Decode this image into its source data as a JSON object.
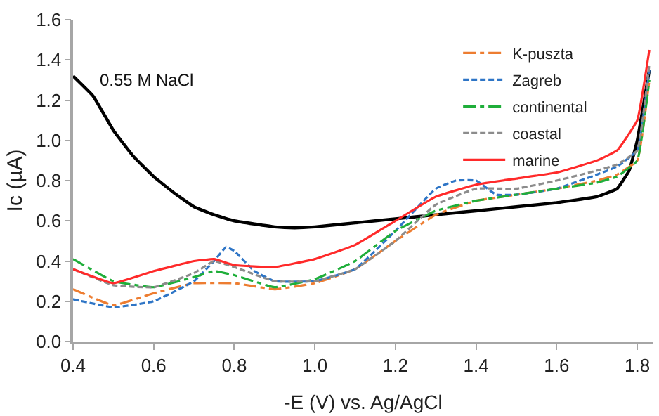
{
  "chart_data": {
    "type": "line",
    "xlabel": "-E (V) vs. Ag/AgCl",
    "ylabel": "Ic (µA)",
    "xlim": [
      0.4,
      1.84
    ],
    "xticks": [
      0.4,
      0.6,
      0.8,
      {
        "value": 1.0,
        "label": "1.0"
      },
      1.2,
      1.4,
      1.6,
      1.8
    ],
    "ylim": [
      0,
      1.6
    ],
    "yticks": [
      {
        "value": 0,
        "label": "0.0"
      },
      0.2,
      0.4,
      0.6,
      0.8,
      {
        "value": 1.0,
        "label": "1.0"
      },
      1.2,
      1.4,
      1.6
    ],
    "legend": "top right",
    "marker": "none",
    "annotations": [
      "0.55 M NaCl"
    ],
    "series": [
      {
        "color": "#000000",
        "line_style": "solid",
        "x": [
          0.4,
          0.45,
          0.5,
          0.55,
          0.6,
          0.65,
          0.7,
          0.75,
          0.8,
          0.9,
          0.95,
          1.0,
          1.1,
          1.2,
          1.3,
          1.4,
          1.5,
          1.6,
          1.7,
          1.75,
          1.78,
          1.8,
          1.83
        ],
        "values": [
          1.32,
          1.22,
          1.05,
          0.92,
          0.82,
          0.74,
          0.67,
          0.63,
          0.6,
          0.57,
          0.565,
          0.57,
          0.59,
          0.61,
          0.63,
          0.65,
          0.67,
          0.69,
          0.72,
          0.76,
          0.85,
          1.0,
          1.35
        ]
      },
      {
        "name": "K-puszta",
        "color": "#ed7d31",
        "line_style": "dashdot",
        "x": [
          0.4,
          0.5,
          0.6,
          0.7,
          0.8,
          0.9,
          1.0,
          1.1,
          1.2,
          1.3,
          1.4,
          1.5,
          1.6,
          1.7,
          1.75,
          1.8,
          1.83
        ],
        "values": [
          0.26,
          0.18,
          0.24,
          0.29,
          0.29,
          0.26,
          0.29,
          0.36,
          0.5,
          0.63,
          0.7,
          0.73,
          0.76,
          0.8,
          0.83,
          0.9,
          1.3
        ]
      },
      {
        "name": "Zagreb",
        "color": "#2e75c6",
        "line_style": "dashed",
        "x": [
          0.4,
          0.5,
          0.6,
          0.7,
          0.75,
          0.78,
          0.8,
          0.85,
          0.9,
          1.0,
          1.1,
          1.2,
          1.3,
          1.35,
          1.4,
          1.45,
          1.5,
          1.6,
          1.7,
          1.75,
          1.8,
          1.83
        ],
        "values": [
          0.21,
          0.17,
          0.2,
          0.3,
          0.4,
          0.47,
          0.45,
          0.35,
          0.3,
          0.3,
          0.36,
          0.55,
          0.76,
          0.8,
          0.8,
          0.73,
          0.73,
          0.76,
          0.83,
          0.87,
          0.95,
          1.35
        ]
      },
      {
        "name": "continental",
        "color": "#1fae3a",
        "line_style": "dashdot",
        "x": [
          0.4,
          0.5,
          0.6,
          0.7,
          0.75,
          0.8,
          0.9,
          1.0,
          1.1,
          1.2,
          1.3,
          1.4,
          1.5,
          1.6,
          1.7,
          1.75,
          1.8,
          1.83
        ],
        "values": [
          0.41,
          0.3,
          0.27,
          0.32,
          0.35,
          0.33,
          0.27,
          0.31,
          0.4,
          0.55,
          0.65,
          0.7,
          0.73,
          0.76,
          0.79,
          0.82,
          0.9,
          1.3
        ]
      },
      {
        "name": "coastal",
        "color": "#8c8c8c",
        "line_style": "dashed",
        "x": [
          0.4,
          0.5,
          0.6,
          0.7,
          0.75,
          0.8,
          0.9,
          1.0,
          1.1,
          1.2,
          1.3,
          1.4,
          1.5,
          1.6,
          1.7,
          1.75,
          1.8,
          1.83
        ],
        "values": [
          0.36,
          0.28,
          0.27,
          0.34,
          0.4,
          0.37,
          0.3,
          0.3,
          0.36,
          0.5,
          0.68,
          0.76,
          0.76,
          0.8,
          0.85,
          0.88,
          0.95,
          1.38
        ]
      },
      {
        "name": "marine",
        "color": "#ff2a2a",
        "line_style": "solid",
        "x": [
          0.4,
          0.5,
          0.6,
          0.7,
          0.75,
          0.8,
          0.9,
          1.0,
          1.1,
          1.2,
          1.3,
          1.4,
          1.5,
          1.6,
          1.7,
          1.75,
          1.8,
          1.83
        ],
        "values": [
          0.36,
          0.29,
          0.35,
          0.4,
          0.41,
          0.38,
          0.37,
          0.41,
          0.48,
          0.6,
          0.72,
          0.78,
          0.81,
          0.84,
          0.9,
          0.95,
          1.1,
          1.45
        ]
      }
    ]
  }
}
